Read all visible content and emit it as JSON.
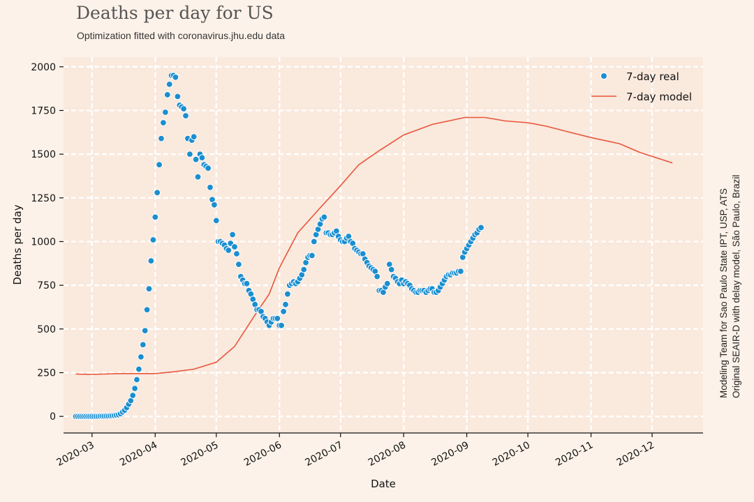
{
  "title": "Deaths per day for US",
  "subtitle": "Optimization fitted with coronavirus.jhu.edu data",
  "side_note": [
    "Modeling Team for Sao Paulo State IPT, USP, ATS",
    "Original SEAIR-D with delay model, São Paulo, Brazil"
  ],
  "colors": {
    "background": "#fdf2e9",
    "plot_background": "#fae9dd",
    "real": "#1b8ecf",
    "model": "#e8553b",
    "grid": "#ffffff"
  },
  "chart_data": {
    "type": "line",
    "xlabel": "Date",
    "ylabel": "Deaths per day",
    "ylim": [
      -95,
      2055
    ],
    "xlim": [
      "2020-02-16",
      "2020-12-26"
    ],
    "yticks": [
      0,
      250,
      500,
      750,
      1000,
      1250,
      1500,
      1750,
      2000
    ],
    "ytick_labels": [
      "0",
      "250",
      "500",
      "750",
      "1000",
      "1250",
      "1500",
      "1750",
      "2000"
    ],
    "xticks": [
      "2020-03-01",
      "2020-04-01",
      "2020-05-01",
      "2020-06-01",
      "2020-07-01",
      "2020-08-01",
      "2020-09-01",
      "2020-10-01",
      "2020-11-01",
      "2020-12-01"
    ],
    "xtick_labels": [
      "2020-03",
      "2020-04",
      "2020-05",
      "2020-06",
      "2020-07",
      "2020-08",
      "2020-09",
      "2020-10",
      "2020-11",
      "2020-12"
    ],
    "grid": true,
    "legend_position": "top-right",
    "series": [
      {
        "name": "7-day real",
        "kind": "scatter",
        "start_date": "2020-02-22",
        "values": [
          0,
          0,
          0,
          0,
          0,
          0,
          0,
          0,
          0,
          0,
          0,
          0,
          1,
          1,
          1,
          2,
          2,
          3,
          4,
          5,
          7,
          10,
          15,
          25,
          35,
          50,
          70,
          90,
          120,
          160,
          210,
          270,
          340,
          410,
          490,
          610,
          730,
          890,
          1010,
          1140,
          1280,
          1440,
          1590,
          1680,
          1740,
          1840,
          1900,
          1950,
          1950,
          1940,
          1830,
          1780,
          1770,
          1760,
          1720,
          1590,
          1500,
          1580,
          1600,
          1470,
          1370,
          1500,
          1480,
          1440,
          1430,
          1420,
          1310,
          1240,
          1210,
          1120,
          1000,
          1000,
          990,
          980,
          960,
          950,
          990,
          1040,
          970,
          930,
          870,
          800,
          780,
          760,
          760,
          720,
          700,
          670,
          640,
          610,
          610,
          600,
          570,
          560,
          540,
          520,
          540,
          560,
          560,
          560,
          520,
          520,
          600,
          640,
          700,
          750,
          760,
          770,
          760,
          770,
          790,
          810,
          840,
          880,
          910,
          920,
          920,
          1000,
          1040,
          1070,
          1100,
          1130,
          1140,
          1050,
          1050,
          1040,
          1040,
          1050,
          1060,
          1030,
          1010,
          1000,
          1000,
          1020,
          1030,
          1000,
          990,
          960,
          950,
          940,
          930,
          930,
          900,
          880,
          860,
          850,
          840,
          830,
          800,
          720,
          720,
          710,
          740,
          760,
          870,
          840,
          800,
          790,
          770,
          760,
          780,
          760,
          770,
          760,
          750,
          730,
          720,
          710,
          710,
          720,
          720,
          720,
          710,
          720,
          730,
          730,
          710,
          710,
          720,
          740,
          760,
          780,
          800,
          810,
          810,
          820,
          820,
          820,
          830,
          830,
          910,
          940,
          960,
          980,
          1000,
          1020,
          1040,
          1050,
          1070,
          1080
        ]
      },
      {
        "name": "7-day model",
        "kind": "line",
        "points": [
          [
            "2020-02-22",
            242
          ],
          [
            "2020-03-01",
            240
          ],
          [
            "2020-03-15",
            245
          ],
          [
            "2020-03-25",
            245
          ],
          [
            "2020-04-01",
            245
          ],
          [
            "2020-04-10",
            255
          ],
          [
            "2020-04-20",
            270
          ],
          [
            "2020-05-01",
            310
          ],
          [
            "2020-05-10",
            400
          ],
          [
            "2020-05-20",
            580
          ],
          [
            "2020-05-27",
            700
          ],
          [
            "2020-06-01",
            850
          ],
          [
            "2020-06-10",
            1050
          ],
          [
            "2020-06-20",
            1180
          ],
          [
            "2020-07-01",
            1320
          ],
          [
            "2020-07-10",
            1440
          ],
          [
            "2020-07-20",
            1520
          ],
          [
            "2020-08-01",
            1610
          ],
          [
            "2020-08-15",
            1670
          ],
          [
            "2020-08-31",
            1710
          ],
          [
            "2020-09-10",
            1710
          ],
          [
            "2020-09-20",
            1690
          ],
          [
            "2020-10-01",
            1680
          ],
          [
            "2020-10-10",
            1660
          ],
          [
            "2020-10-20",
            1630
          ],
          [
            "2020-11-01",
            1595
          ],
          [
            "2020-11-15",
            1560
          ],
          [
            "2020-11-25",
            1510
          ],
          [
            "2020-12-11",
            1450
          ]
        ]
      }
    ]
  }
}
